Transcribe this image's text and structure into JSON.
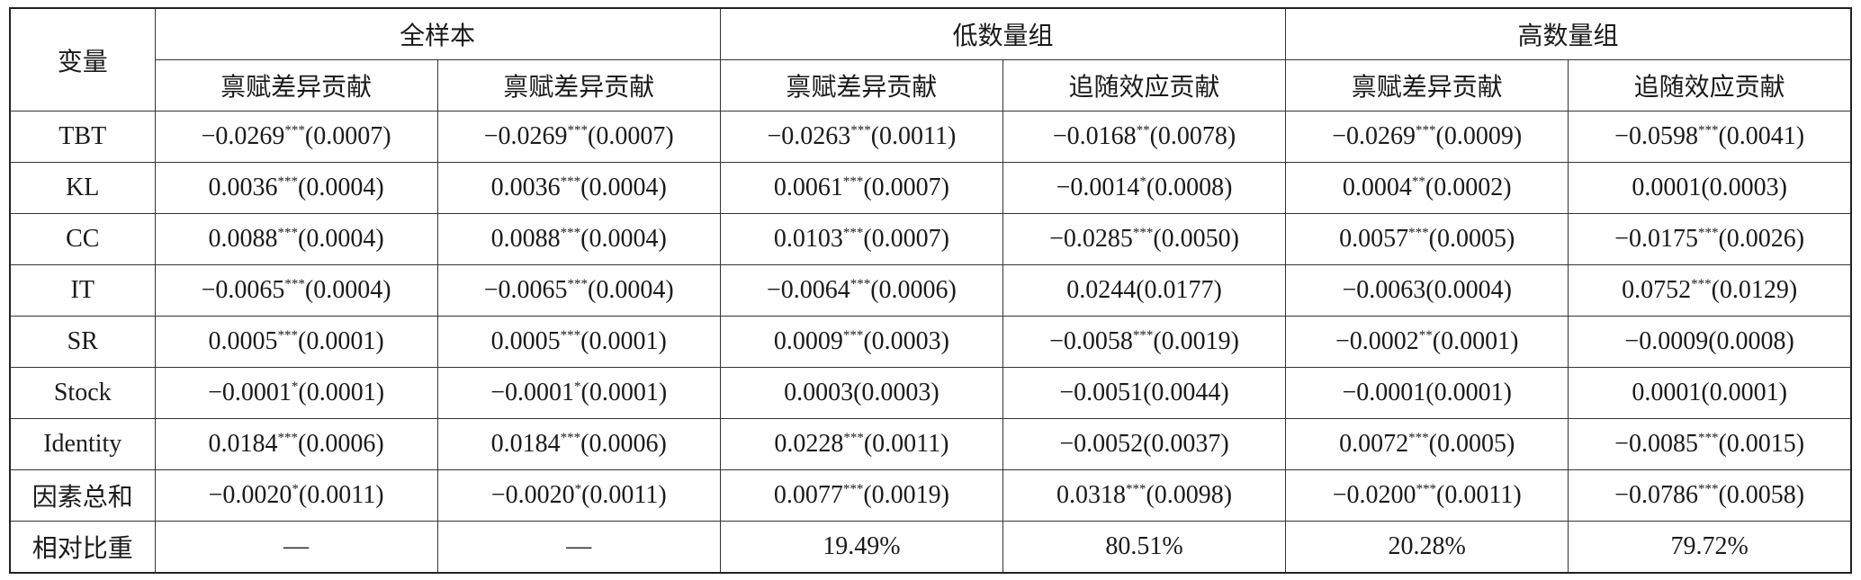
{
  "table": {
    "corner": "变量",
    "groups": [
      "全样本",
      "低数量组",
      "高数量组"
    ],
    "subheaders": [
      "禀赋差异贡献",
      "禀赋差异贡献",
      "禀赋差异贡献",
      "追随效应贡献",
      "禀赋差异贡献",
      "追随效应贡献"
    ],
    "rows": [
      {
        "label": "TBT",
        "cells": [
          {
            "value": "−0.0269",
            "sig": "***",
            "se": "(0.0007)"
          },
          {
            "value": "−0.0269",
            "sig": "***",
            "se": "(0.0007)"
          },
          {
            "value": "−0.0263",
            "sig": "***",
            "se": "(0.0011)"
          },
          {
            "value": "−0.0168",
            "sig": "**",
            "se": "(0.0078)"
          },
          {
            "value": "−0.0269",
            "sig": "***",
            "se": "(0.0009)"
          },
          {
            "value": "−0.0598",
            "sig": "***",
            "se": "(0.0041)"
          }
        ]
      },
      {
        "label": "KL",
        "cells": [
          {
            "value": "0.0036",
            "sig": "***",
            "se": "(0.0004)"
          },
          {
            "value": "0.0036",
            "sig": "***",
            "se": "(0.0004)"
          },
          {
            "value": "0.0061",
            "sig": "***",
            "se": "(0.0007)"
          },
          {
            "value": "−0.0014",
            "sig": "*",
            "se": "(0.0008)"
          },
          {
            "value": "0.0004",
            "sig": "**",
            "se": "(0.0002)"
          },
          "0.0001(0.0003)"
        ]
      },
      {
        "label": "CC",
        "cells": [
          {
            "value": "0.0088",
            "sig": "***",
            "se": "(0.0004)"
          },
          {
            "value": "0.0088",
            "sig": "***",
            "se": "(0.0004)"
          },
          {
            "value": "0.0103",
            "sig": "***",
            "se": "(0.0007)"
          },
          {
            "value": "−0.0285",
            "sig": "***",
            "se": "(0.0050)"
          },
          {
            "value": "0.0057",
            "sig": "***",
            "se": "(0.0005)"
          },
          {
            "value": "−0.0175",
            "sig": "***",
            "se": "(0.0026)"
          }
        ]
      },
      {
        "label": "IT",
        "cells": [
          {
            "value": "−0.0065",
            "sig": "***",
            "se": "(0.0004)"
          },
          {
            "value": "−0.0065",
            "sig": "***",
            "se": "(0.0004)"
          },
          {
            "value": "−0.0064",
            "sig": "***",
            "se": "(0.0006)"
          },
          "0.0244(0.0177)",
          "−0.0063(0.0004)",
          {
            "value": "0.0752",
            "sig": "***",
            "se": "(0.0129)"
          }
        ]
      },
      {
        "label": "SR",
        "cells": [
          {
            "value": "0.0005",
            "sig": "***",
            "se": "(0.0001)"
          },
          {
            "value": "0.0005",
            "sig": "***",
            "se": "(0.0001)"
          },
          {
            "value": "0.0009",
            "sig": "***",
            "se": "(0.0003)"
          },
          {
            "value": "−0.0058",
            "sig": "***",
            "se": "(0.0019)"
          },
          {
            "value": "−0.0002",
            "sig": "**",
            "se": "(0.0001)"
          },
          "−0.0009(0.0008)"
        ]
      },
      {
        "label": "Stock",
        "cells": [
          {
            "value": "−0.0001",
            "sig": "*",
            "se": "(0.0001)"
          },
          {
            "value": "−0.0001",
            "sig": "*",
            "se": "(0.0001)"
          },
          "0.0003(0.0003)",
          "−0.0051(0.0044)",
          "−0.0001(0.0001)",
          "0.0001(0.0001)"
        ]
      },
      {
        "label": "Identity",
        "cells": [
          {
            "value": "0.0184",
            "sig": "***",
            "se": "(0.0006)"
          },
          {
            "value": "0.0184",
            "sig": "***",
            "se": "(0.0006)"
          },
          {
            "value": "0.0228",
            "sig": "***",
            "se": "(0.0011)"
          },
          "−0.0052(0.0037)",
          {
            "value": "0.0072",
            "sig": "***",
            "se": "(0.0005)"
          },
          {
            "value": "−0.0085",
            "sig": "***",
            "se": "(0.0015)"
          }
        ]
      },
      {
        "label": "因素总和",
        "cells": [
          {
            "value": "−0.0020",
            "sig": "*",
            "se": "(0.0011)"
          },
          {
            "value": "−0.0020",
            "sig": "*",
            "se": "(0.0011)"
          },
          {
            "value": "0.0077",
            "sig": "***",
            "se": "(0.0019)"
          },
          {
            "value": "0.0318",
            "sig": "***",
            "se": "(0.0098)"
          },
          {
            "value": "−0.0200",
            "sig": "***",
            "se": "(0.0011)"
          },
          {
            "value": "−0.0786",
            "sig": "***",
            "se": "(0.0058)"
          }
        ]
      },
      {
        "label": "相对比重",
        "cells": [
          "—",
          "—",
          "19.49%",
          "80.51%",
          "20.28%",
          "79.72%"
        ]
      }
    ]
  }
}
